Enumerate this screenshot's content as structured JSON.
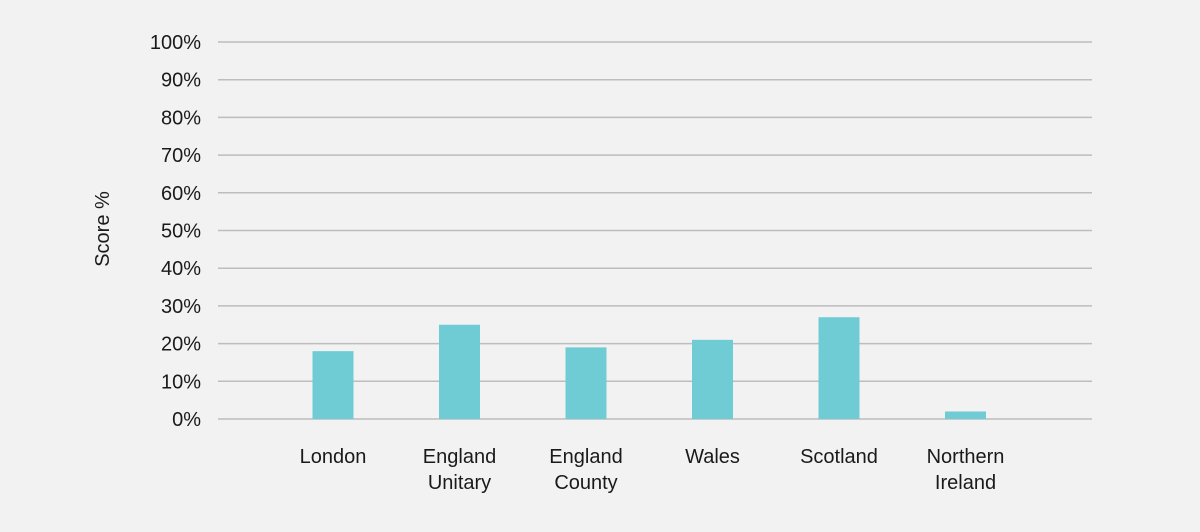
{
  "chart_data": {
    "type": "bar",
    "title": "",
    "xlabel": "",
    "ylabel": "Score %",
    "categories": [
      [
        "London"
      ],
      [
        "England",
        "Unitary"
      ],
      [
        "England",
        "County"
      ],
      [
        "Wales"
      ],
      [
        "Scotland"
      ],
      [
        "Northern",
        "Ireland"
      ]
    ],
    "values": [
      18,
      25,
      19,
      21,
      27,
      2
    ],
    "ylim": [
      0,
      100
    ],
    "yticks": [
      0,
      10,
      20,
      30,
      40,
      50,
      60,
      70,
      80,
      90,
      100
    ],
    "ytick_labels": [
      "0%",
      "10%",
      "20%",
      "30%",
      "40%",
      "50%",
      "60%",
      "70%",
      "80%",
      "90%",
      "100%"
    ],
    "grid": true,
    "legend": "none",
    "bar_color": "#70ccd4",
    "grid_color": "#bdbdbd"
  }
}
